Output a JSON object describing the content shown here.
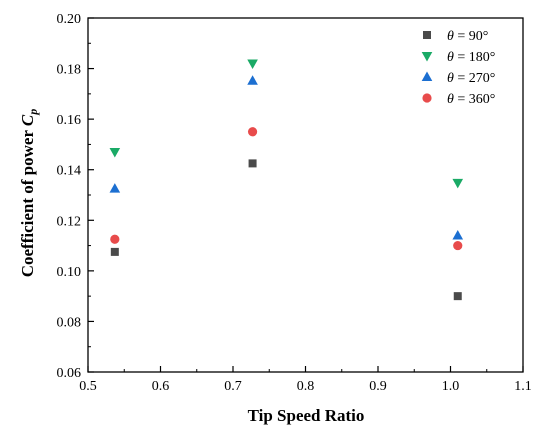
{
  "chart_data": {
    "type": "scatter",
    "xlabel": "Tip Speed Ratio",
    "ylabel_main": "Coefficient of power ",
    "ylabel_var": "C",
    "ylabel_sub": "p",
    "xlim": [
      0.5,
      1.1
    ],
    "ylim": [
      0.06,
      0.2
    ],
    "x_ticks": [
      "0.5",
      "0.6",
      "0.7",
      "0.8",
      "0.9",
      "1.0",
      "1.1"
    ],
    "y_ticks": [
      "0.06",
      "0.08",
      "0.10",
      "0.12",
      "0.14",
      "0.16",
      "0.18",
      "0.20"
    ],
    "grid": false,
    "legend_position": "top-right",
    "series": [
      {
        "name_symbol": "θ",
        "name_value": " = 90°",
        "marker": "square",
        "color": "#4a4a4a",
        "x": [
          0.537,
          0.727,
          1.01
        ],
        "y": [
          0.1075,
          0.1425,
          0.09
        ]
      },
      {
        "name_symbol": "θ",
        "name_value": " = 180°",
        "marker": "triangle-down",
        "color": "#1aaa66",
        "x": [
          0.537,
          0.727,
          1.01
        ],
        "y": [
          0.147,
          0.182,
          0.1348
        ]
      },
      {
        "name_symbol": "θ",
        "name_value": " = 270°",
        "marker": "triangle-up",
        "color": "#1c6fd1",
        "x": [
          0.537,
          0.727,
          1.01
        ],
        "y": [
          0.1325,
          0.1752,
          0.114
        ]
      },
      {
        "name_symbol": "θ",
        "name_value": " = 360°",
        "marker": "circle",
        "color": "#e84b4b",
        "x": [
          0.537,
          0.727,
          1.01
        ],
        "y": [
          0.1125,
          0.155,
          0.11
        ]
      }
    ]
  }
}
